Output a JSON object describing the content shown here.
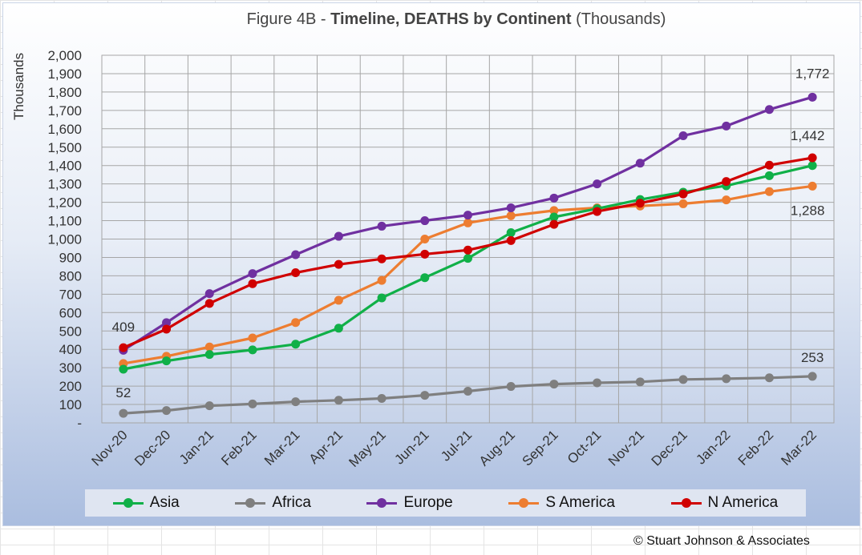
{
  "title_prefix": "Figure 4B - ",
  "title_bold": "Timeline, DEATHS by Continent",
  "title_suffix": " (Thousands)",
  "copyright": "© Stuart Johnson & Associates",
  "colors": {
    "Asia": "#10b048",
    "Africa": "#7f7f7f",
    "Europe": "#7030a0",
    "S America": "#ed7d31",
    "N America": "#d00000"
  },
  "chart_data": {
    "type": "line",
    "title": "Figure 4B - Timeline, DEATHS by Continent (Thousands)",
    "xlabel": "",
    "ylabel": "Thousands",
    "ylim": [
      0,
      2000
    ],
    "y_ticks": [
      "-",
      "100",
      "200",
      "300",
      "400",
      "500",
      "600",
      "700",
      "800",
      "900",
      "1,000",
      "1,100",
      "1,200",
      "1,300",
      "1,400",
      "1,500",
      "1,600",
      "1,700",
      "1,800",
      "1,900",
      "2,000"
    ],
    "categories": [
      "Nov-20",
      "Dec-20",
      "Jan-21",
      "Feb-21",
      "Mar-21",
      "Apr-21",
      "May-21",
      "Jun-21",
      "Jul-21",
      "Aug-21",
      "Sep-21",
      "Oct-21",
      "Nov-21",
      "Dec-21",
      "Jan-22",
      "Feb-22",
      "Mar-22"
    ],
    "grid": true,
    "legend": "bottom",
    "series": [
      {
        "name": "Asia",
        "values": [
          292,
          337,
          372,
          397,
          428,
          515,
          680,
          790,
          895,
          1035,
          1120,
          1165,
          1215,
          1255,
          1290,
          1345,
          1400
        ]
      },
      {
        "name": "Africa",
        "values": [
          52,
          67,
          93,
          103,
          115,
          123,
          133,
          150,
          172,
          198,
          211,
          218,
          223,
          236,
          240,
          245,
          253
        ]
      },
      {
        "name": "Europe",
        "values": [
          395,
          545,
          703,
          812,
          915,
          1015,
          1070,
          1100,
          1130,
          1170,
          1223,
          1300,
          1413,
          1562,
          1615,
          1705,
          1772
        ]
      },
      {
        "name": "S America",
        "values": [
          323,
          362,
          413,
          462,
          546,
          667,
          775,
          1000,
          1088,
          1127,
          1155,
          1170,
          1180,
          1192,
          1213,
          1258,
          1288
        ]
      },
      {
        "name": "N America",
        "values": [
          409,
          510,
          650,
          757,
          817,
          862,
          892,
          918,
          940,
          992,
          1080,
          1150,
          1195,
          1245,
          1313,
          1402,
          1442
        ]
      }
    ],
    "data_labels": [
      {
        "series": "N America",
        "index": 0,
        "text": "409"
      },
      {
        "series": "Africa",
        "index": 0,
        "text": "52"
      },
      {
        "series": "Europe",
        "index": 16,
        "text": "1,772"
      },
      {
        "series": "N America",
        "index": 16,
        "text": "1,442"
      },
      {
        "series": "S America",
        "index": 16,
        "text": "1,288"
      },
      {
        "series": "Africa",
        "index": 16,
        "text": "253"
      }
    ]
  }
}
